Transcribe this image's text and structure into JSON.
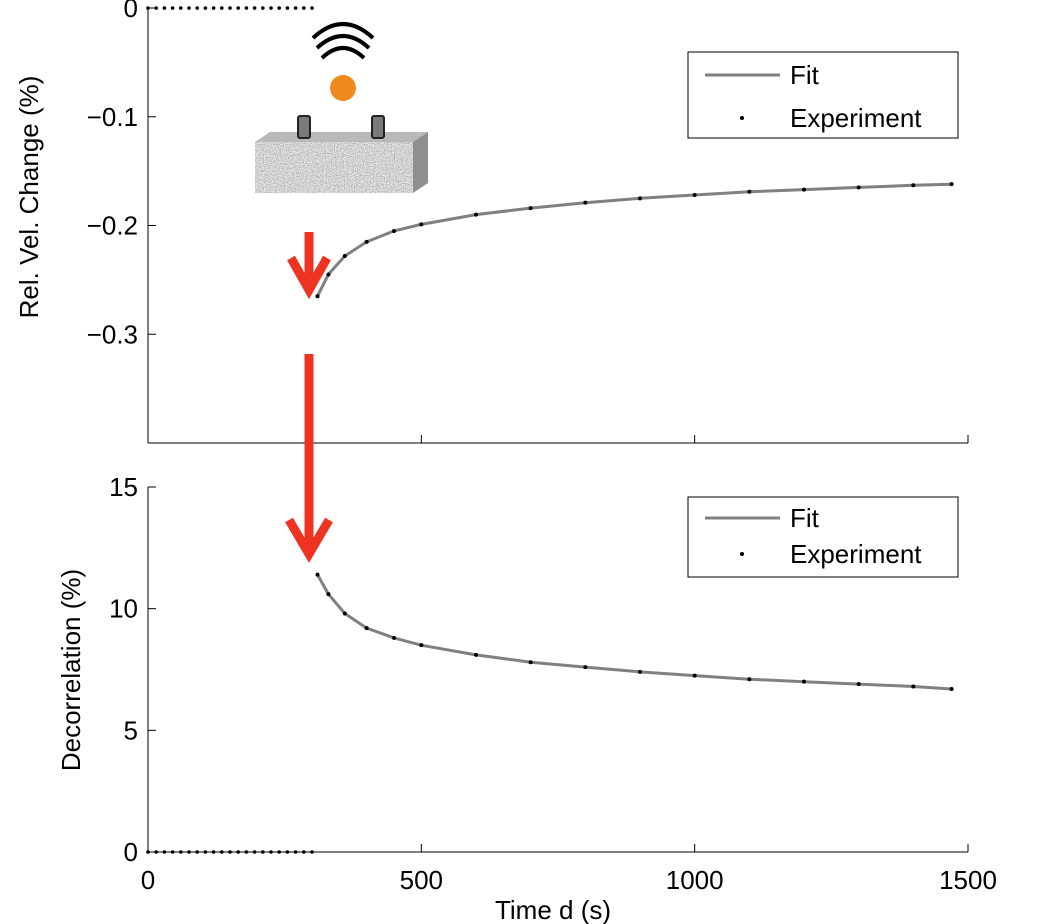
{
  "chart_data": [
    {
      "type": "line",
      "ylabel": "Rel. Vel. Change  (%)",
      "xlabel": "",
      "xlim": [
        0,
        1500
      ],
      "ylim": [
        -0.4,
        0
      ],
      "xticks": [
        0,
        500,
        1000,
        1500
      ],
      "xtick_labels_visible": false,
      "yticks": [
        0,
        -0.1,
        -0.2,
        -0.3
      ],
      "ytick_labels": [
        "0",
        "−0.1",
        "−0.2",
        "−0.3"
      ],
      "legend": {
        "placement": "top-right",
        "entries": [
          "Fit",
          "Experiment"
        ]
      },
      "baseline": {
        "name": "Experiment",
        "x": [
          0,
          300
        ],
        "y": [
          0,
          0
        ],
        "style": "dotted"
      },
      "series": [
        {
          "name": "Fit",
          "style": "line",
          "color": "#808080",
          "x": [
            310,
            330,
            360,
            400,
            450,
            500,
            600,
            700,
            800,
            900,
            1000,
            1100,
            1200,
            1300,
            1400,
            1470
          ],
          "y": [
            -0.265,
            -0.245,
            -0.228,
            -0.215,
            -0.205,
            -0.199,
            -0.19,
            -0.184,
            -0.179,
            -0.175,
            -0.172,
            -0.169,
            -0.167,
            -0.165,
            -0.163,
            -0.162
          ]
        },
        {
          "name": "Experiment",
          "style": "dots",
          "color": "#000000",
          "x": [
            310,
            330,
            360,
            400,
            450,
            500,
            600,
            700,
            800,
            900,
            1000,
            1100,
            1200,
            1300,
            1400,
            1470
          ],
          "y": [
            -0.265,
            -0.245,
            -0.228,
            -0.215,
            -0.205,
            -0.199,
            -0.19,
            -0.184,
            -0.179,
            -0.175,
            -0.172,
            -0.169,
            -0.167,
            -0.165,
            -0.163,
            -0.162
          ]
        }
      ]
    },
    {
      "type": "line",
      "ylabel": "Decorrelation (%)",
      "xlabel": "Time d (s)",
      "xlim": [
        0,
        1500
      ],
      "ylim": [
        0,
        15
      ],
      "xticks": [
        0,
        500,
        1000,
        1500
      ],
      "xtick_labels": [
        "0",
        "500",
        "1000",
        "1500"
      ],
      "yticks": [
        0,
        5,
        10,
        15
      ],
      "ytick_labels": [
        "0",
        "5",
        "10",
        "15"
      ],
      "legend": {
        "placement": "top-right",
        "entries": [
          "Fit",
          "Experiment"
        ]
      },
      "baseline": {
        "name": "Experiment",
        "x": [
          0,
          300
        ],
        "y": [
          0,
          0
        ],
        "style": "dotted"
      },
      "series": [
        {
          "name": "Fit",
          "style": "line",
          "color": "#808080",
          "x": [
            310,
            330,
            360,
            400,
            450,
            500,
            600,
            700,
            800,
            900,
            1000,
            1100,
            1200,
            1300,
            1400,
            1470
          ],
          "y": [
            11.4,
            10.6,
            9.8,
            9.2,
            8.8,
            8.5,
            8.1,
            7.8,
            7.6,
            7.4,
            7.25,
            7.1,
            7.0,
            6.9,
            6.8,
            6.7
          ]
        },
        {
          "name": "Experiment",
          "style": "dots",
          "color": "#000000",
          "x": [
            310,
            330,
            360,
            400,
            450,
            500,
            600,
            700,
            800,
            900,
            1000,
            1100,
            1200,
            1300,
            1400,
            1470
          ],
          "y": [
            11.4,
            10.6,
            9.8,
            9.2,
            8.8,
            8.5,
            8.1,
            7.8,
            7.6,
            7.4,
            7.25,
            7.1,
            7.0,
            6.9,
            6.8,
            6.7
          ]
        }
      ]
    }
  ],
  "annotations": {
    "arrow_color": "#ee3322",
    "illustration": [
      "sensor-icon",
      "wave-source-icon",
      "rock-sample-icon"
    ],
    "source_ball_color": "#ee8a1e"
  }
}
